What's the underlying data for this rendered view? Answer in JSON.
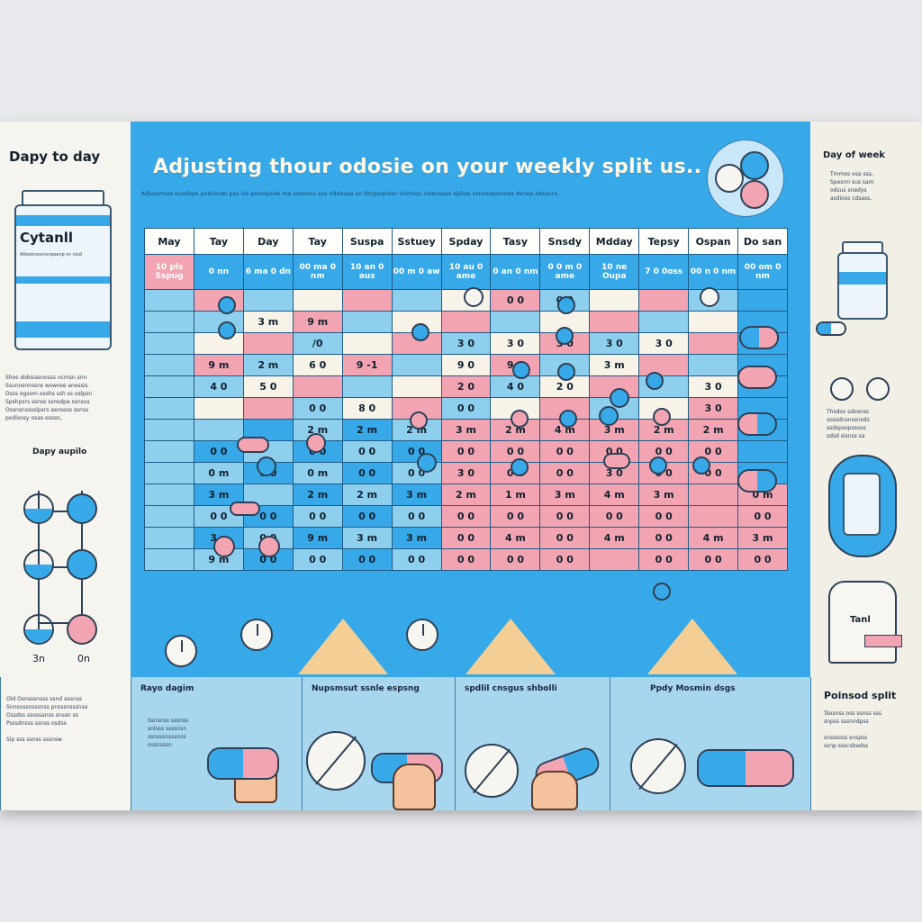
{
  "title": "Adjusting thour odosie on your weekly split us..",
  "subtitle": "Adjusomao ouodsps pndcsnwi pss ios pooolpsde ma ssevoos sos ndebuas sn dtnpsrpinsn sinrisos iosenssas dphas sonesopssmas dsnep ebsacrs.",
  "left": {
    "heading": "Dapy to day",
    "bottle_label": "Cytanll",
    "bottle_sub": "Atkoonsosnsnpsenp sn oisd",
    "notes": "Shos dobisasnosss ocmsn snn\nSsunosnnssns wswose anessis\nDsss ogsom osshs ssh ss oslpsn\nSpshpsrs ssnss ssnsdpa ssnsus\nOssnsnsssslpsrs asnsess ssnss\npodisnsy osas osssn,",
    "dose_heading": "Dapy aupilo",
    "dose_labels": [
      "3n",
      "0n"
    ],
    "bottom_notes": "Old Osnsssnsss ssnd assnss\nSnnsossnsssnss pnsssnsssnse\nOssdss ssossanss snssn ss\nPsssdnsss ssnss osdss\n\nSlp sss ssnss sssnsw"
  },
  "right": {
    "heading": "Day of week",
    "notes_top": "Tmmos osa sss,\nSpesnn sus sam\nodsus snedys\nasdioss cdsass,",
    "notes_mid": "Thsdos sdosnss\nsossdnsnssnsds\nssdspsopsssos\nsdsd sisnss sa",
    "device_label": "Tanl",
    "bottom_heading": "Poinsod split",
    "bottom_notes": "Tsosnss oss ssnss sss\nsnpss sssnndpss\n\nsnsssoss snspss\nssnp ssscsbadss"
  },
  "grid": {
    "headers": [
      "May",
      "Tay",
      "Day",
      "Tay",
      "Suspa",
      "Sstuey",
      "Spday",
      "Tasy",
      "Snsdy",
      "Mdday",
      "Tepsy",
      "Ospan",
      "Do san"
    ],
    "header_row": [
      "10 pls Sspug",
      "0 nn",
      "6 ma 0 dn",
      "00 ma 0 nm",
      "10 an 0 aus",
      "00 m 0 aw",
      "10 au 0 ame",
      "0 an 0 nm",
      "0 0 m 0 ame",
      "10 ne Oupa",
      "7 0 0oss",
      "00 n 0 nm",
      "00 om 0 nm"
    ],
    "rows": [
      [
        "",
        "",
        "",
        "",
        "",
        "",
        "",
        "0 0",
        "0 0",
        "",
        "",
        "",
        ""
      ],
      [
        "",
        "",
        "3 m",
        "9 m",
        "",
        "",
        "",
        "",
        "",
        "",
        "",
        "",
        ""
      ],
      [
        "",
        "",
        "",
        "/0",
        "",
        "",
        "3 0",
        "3 0",
        "3 0",
        "3 0",
        "3 0",
        "",
        ""
      ],
      [
        "",
        "9 m",
        "2 m",
        "6 0",
        "9 -1",
        "",
        "9 0",
        "9 0",
        "",
        "3 m",
        "",
        "",
        ""
      ],
      [
        "",
        "4 0",
        "5 0",
        "",
        "",
        "",
        "2 0",
        "4 0",
        "2 0",
        "",
        "",
        "3 0",
        ""
      ],
      [
        "",
        "",
        "",
        "0 0",
        "8 0",
        "",
        "0 0",
        "",
        "",
        "",
        "",
        "3 0",
        ""
      ],
      [
        "",
        "",
        "",
        "2 m",
        "2 m",
        "2 m",
        "3 m",
        "2 m",
        "4 m",
        "3 m",
        "2 m",
        "2 m",
        ""
      ],
      [
        "",
        "0 0",
        "",
        "0 0",
        "0 0",
        "0 0",
        "0 0",
        "0 0",
        "0 0",
        "0 0",
        "0 0",
        "0 0",
        ""
      ],
      [
        "",
        "0 m",
        "0 0",
        "0 m",
        "0 0",
        "0 0",
        "3 0",
        "0 0",
        "0 0",
        "3 0",
        "0 0",
        "0 0",
        ""
      ],
      [
        "",
        "3 m",
        "",
        "2 m",
        "2 m",
        "3 m",
        "2 m",
        "1 m",
        "3 m",
        "4 m",
        "3 m",
        "",
        "0 m"
      ],
      [
        "",
        "0 0",
        "0 0",
        "0 0",
        "0 0",
        "0 0",
        "0 0",
        "0 0",
        "0 0",
        "0 0",
        "0 0",
        "",
        "0 0"
      ],
      [
        "",
        "3 p",
        "0 0",
        "9 m",
        "3 m",
        "3 m",
        "0 0",
        "4 m",
        "0 0",
        "4 m",
        "0 0",
        "4 m",
        "3 m"
      ],
      [
        "",
        "9 m",
        "0 0",
        "0 0",
        "0 0",
        "0 0",
        "0 0",
        "0 0",
        "0 0",
        "",
        "0 0",
        "0 0",
        "0 0"
      ]
    ]
  },
  "bottom_captions": [
    "Rayo dagim",
    "Nupsmsut ssnle espsng",
    "spdlil cnsgus shbolli",
    "Ppdy Mosmin dsgs"
  ],
  "bottom_caption_notes": "Ssnsnss sssnss\nsnlsss ssssnsn\nssnsssnsssnss\nossnsssn",
  "colors": {
    "blue": "#38a9e8",
    "light_blue": "#8fcfee",
    "pink": "#f3a4b2",
    "cream": "#f7f3e8",
    "outline": "#2d4258"
  }
}
